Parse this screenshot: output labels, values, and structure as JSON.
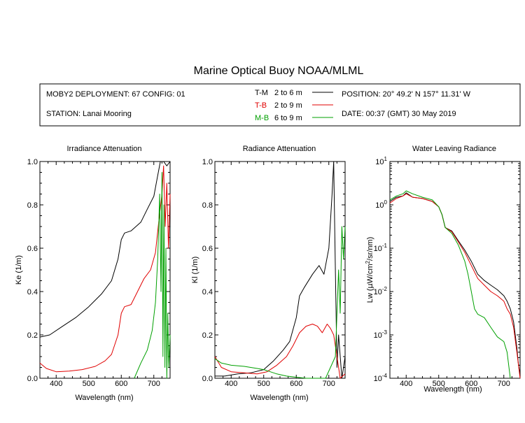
{
  "figure": {
    "title": "Marine Optical Buoy NOAA/MLML"
  },
  "info": {
    "deployment": "MOBY2 DEPLOYMENT: 67 CONFIG: 01",
    "station": "STATION: Lanai Mooring",
    "position": "POSITION: 20° 49.2' N   157° 11.31' W",
    "date": "DATE: 00:37 (GMT) 30 May 2019",
    "legend": [
      {
        "code": "T-M",
        "depth": "2 to 6  m",
        "color": "#000000"
      },
      {
        "code": "T-B",
        "depth": "2 to 9  m",
        "color": "#e00000"
      },
      {
        "code": "M-B",
        "depth": "6 to 9  m",
        "color": "#00a000"
      }
    ]
  },
  "chart_data": [
    {
      "type": "line",
      "title": "Irradiance Attenuation",
      "xlabel": "Wavelength (nm)",
      "ylabel": "Ke  (1/m)",
      "xlim": [
        350,
        750
      ],
      "ylim": [
        0,
        1
      ],
      "xticks": [
        400,
        500,
        600,
        700
      ],
      "yticks": [
        0.0,
        0.2,
        0.4,
        0.6,
        0.8,
        1.0
      ],
      "ytick_labels": [
        "0.0",
        "0.2",
        "0.4",
        "0.6",
        "0.8",
        "1.0"
      ],
      "series": [
        {
          "code": "T-M",
          "color": "#000000",
          "x": [
            350,
            380,
            420,
            460,
            500,
            540,
            570,
            590,
            600,
            610,
            630,
            660,
            680,
            700,
            710,
            720,
            730,
            740,
            750
          ],
          "y": [
            0.19,
            0.2,
            0.24,
            0.28,
            0.33,
            0.39,
            0.45,
            0.55,
            0.64,
            0.67,
            0.68,
            0.72,
            0.78,
            0.84,
            0.92,
            1.0,
            1.0,
            0.98,
            1.0
          ]
        },
        {
          "code": "T-B",
          "color": "#e00000",
          "x": [
            350,
            370,
            400,
            440,
            480,
            520,
            550,
            570,
            590,
            600,
            610,
            630,
            650,
            670,
            690,
            705,
            715,
            725,
            730,
            735,
            740,
            745,
            750
          ],
          "y": [
            0.07,
            0.045,
            0.03,
            0.033,
            0.04,
            0.055,
            0.08,
            0.11,
            0.2,
            0.3,
            0.33,
            0.34,
            0.4,
            0.46,
            0.5,
            0.58,
            0.72,
            0.85,
            0.98,
            0.7,
            0.9,
            0.6,
            0.85
          ]
        },
        {
          "code": "M-B",
          "color": "#00a000",
          "x": [
            640,
            660,
            680,
            695,
            705,
            712,
            718,
            722,
            725,
            728,
            731,
            734,
            737,
            740,
            743,
            746,
            750
          ],
          "y": [
            0.0,
            0.07,
            0.13,
            0.22,
            0.35,
            0.55,
            0.85,
            0.4,
            0.95,
            0.1,
            0.8,
            0.05,
            0.6,
            0.0,
            0.3,
            0.05,
            0.2
          ]
        }
      ]
    },
    {
      "type": "line",
      "title": "Radiance Attenuation",
      "xlabel": "Wavelength (nm)",
      "ylabel": "Kl  (1/m)",
      "xlim": [
        350,
        750
      ],
      "ylim": [
        0,
        1
      ],
      "xticks": [
        400,
        500,
        600,
        700
      ],
      "yticks": [
        0.0,
        0.2,
        0.4,
        0.6,
        0.8,
        1.0
      ],
      "ytick_labels": [
        "0.0",
        "0.2",
        "0.4",
        "0.6",
        "0.8",
        "1.0"
      ],
      "series": [
        {
          "code": "T-M",
          "color": "#000000",
          "x": [
            350,
            380,
            420,
            460,
            500,
            530,
            560,
            580,
            600,
            610,
            625,
            650,
            670,
            685,
            700,
            710,
            715,
            720,
            725,
            730,
            740,
            750
          ],
          "y": [
            0.01,
            0.01,
            0.02,
            0.025,
            0.04,
            0.08,
            0.13,
            0.17,
            0.28,
            0.38,
            0.42,
            0.48,
            0.52,
            0.48,
            0.6,
            0.85,
            1.0,
            0.5,
            0.05,
            0.2,
            0.0,
            0.1
          ]
        },
        {
          "code": "T-B",
          "color": "#e00000",
          "x": [
            350,
            370,
            400,
            440,
            480,
            510,
            540,
            570,
            590,
            610,
            630,
            650,
            665,
            680,
            695,
            705,
            715,
            725,
            735,
            750
          ],
          "y": [
            0.1,
            0.05,
            0.03,
            0.025,
            0.02,
            0.03,
            0.06,
            0.1,
            0.15,
            0.21,
            0.24,
            0.25,
            0.24,
            0.21,
            0.25,
            0.23,
            0.2,
            0.1,
            0.0,
            0.02
          ]
        },
        {
          "code": "M-B",
          "color": "#00a000",
          "x": [
            350,
            370,
            400,
            440,
            480,
            500,
            520,
            540,
            570,
            600,
            630,
            660,
            690,
            720,
            730,
            735,
            740,
            745,
            750
          ],
          "y": [
            0.09,
            0.07,
            0.06,
            0.055,
            0.045,
            0.04,
            0.03,
            0.02,
            0.01,
            0.005,
            0.0,
            0.0,
            0.0,
            0.1,
            0.5,
            0.3,
            0.7,
            0.55,
            0.7
          ]
        }
      ]
    },
    {
      "type": "line",
      "title": "Water Leaving Radiance",
      "xlabel": "Wavelength (nm)",
      "ylabel_prefix": "Lw  (",
      "ylabel_mu": "μ",
      "ylabel_mid": "W/cm",
      "ylabel_sup": "2",
      "ylabel_suffix": "/sr/nm)",
      "xlim": [
        350,
        750
      ],
      "ylim": [
        0.0001,
        10
      ],
      "yscale": "log",
      "xticks": [
        400,
        500,
        600,
        700
      ],
      "yticks": [
        10,
        1,
        0.1,
        0.01,
        0.001,
        0.0001
      ],
      "ytick_bases": [
        "10",
        "10",
        "10",
        "10",
        "10",
        "10"
      ],
      "ytick_exps": [
        "1",
        "0",
        "-1",
        "-2",
        "-3",
        "-4"
      ],
      "series": [
        {
          "code": "T-M",
          "color": "#000000",
          "x": [
            350,
            370,
            390,
            400,
            420,
            450,
            480,
            500,
            510,
            520,
            540,
            560,
            580,
            600,
            620,
            640,
            660,
            680,
            700,
            710,
            720,
            730,
            740,
            745,
            750
          ],
          "y": [
            1.2,
            1.5,
            1.6,
            1.9,
            1.5,
            1.4,
            1.2,
            0.9,
            0.6,
            0.3,
            0.25,
            0.15,
            0.09,
            0.05,
            0.025,
            0.018,
            0.014,
            0.011,
            0.008,
            0.006,
            0.004,
            0.002,
            0.0005,
            0.0002,
            0.00012
          ]
        },
        {
          "code": "T-B",
          "color": "#e00000",
          "x": [
            350,
            370,
            390,
            400,
            420,
            450,
            480,
            500,
            510,
            520,
            540,
            560,
            580,
            600,
            620,
            640,
            660,
            680,
            700,
            710,
            720,
            730,
            740,
            750
          ],
          "y": [
            1.1,
            1.4,
            1.6,
            1.8,
            1.5,
            1.4,
            1.2,
            0.9,
            0.6,
            0.3,
            0.24,
            0.14,
            0.08,
            0.04,
            0.02,
            0.014,
            0.01,
            0.008,
            0.006,
            0.004,
            0.003,
            0.0015,
            0.0004,
            0.0001
          ]
        },
        {
          "code": "M-B",
          "color": "#00a000",
          "x": [
            350,
            370,
            390,
            400,
            420,
            450,
            480,
            500,
            510,
            520,
            540,
            560,
            580,
            590,
            600,
            610,
            620,
            640,
            660,
            680,
            700,
            710,
            715,
            720
          ],
          "y": [
            1.3,
            1.6,
            1.8,
            2.1,
            1.8,
            1.5,
            1.3,
            0.9,
            0.6,
            0.3,
            0.22,
            0.12,
            0.05,
            0.025,
            0.01,
            0.004,
            0.003,
            0.0025,
            0.0015,
            0.0009,
            0.0007,
            0.0004,
            0.0002,
            0.0001
          ]
        }
      ]
    }
  ]
}
